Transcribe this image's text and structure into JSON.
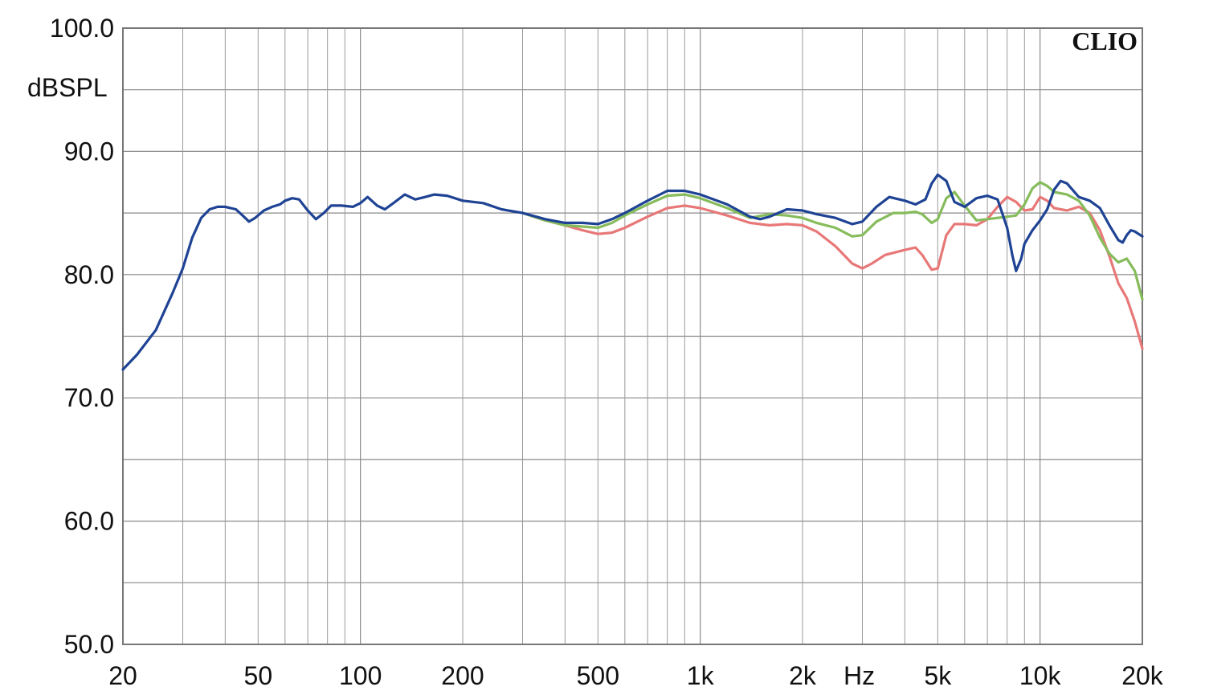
{
  "chart_data": {
    "type": "line",
    "brand": "CLIO",
    "ylabel": "dBSPL",
    "xlabel": "Hz",
    "x_scale": "log",
    "xlim": [
      20,
      20000
    ],
    "ylim": [
      50,
      100
    ],
    "grid": true,
    "y_ticks": [
      {
        "value": 100,
        "label": "100.0"
      },
      {
        "value": 90,
        "label": "90.0"
      },
      {
        "value": 80,
        "label": "80.0"
      },
      {
        "value": 70,
        "label": "70.0"
      },
      {
        "value": 60,
        "label": "60.0"
      },
      {
        "value": 50,
        "label": "50.0"
      }
    ],
    "x_ticks": [
      {
        "value": 20,
        "label": "20"
      },
      {
        "value": 50,
        "label": "50"
      },
      {
        "value": 100,
        "label": "100"
      },
      {
        "value": 200,
        "label": "200"
      },
      {
        "value": 500,
        "label": "500"
      },
      {
        "value": 1000,
        "label": "1k"
      },
      {
        "value": 2000,
        "label": "2k"
      },
      {
        "value": 5000,
        "label": "5k"
      },
      {
        "value": 10000,
        "label": "10k"
      },
      {
        "value": 20000,
        "label": "20k"
      }
    ],
    "series": [
      {
        "color": "#e87878",
        "points": [
          [
            300,
            85.0
          ],
          [
            350,
            84.4
          ],
          [
            400,
            84.0
          ],
          [
            450,
            83.6
          ],
          [
            500,
            83.3
          ],
          [
            550,
            83.4
          ],
          [
            600,
            83.8
          ],
          [
            700,
            84.7
          ],
          [
            800,
            85.4
          ],
          [
            900,
            85.6
          ],
          [
            1000,
            85.4
          ],
          [
            1200,
            84.8
          ],
          [
            1400,
            84.2
          ],
          [
            1600,
            84.0
          ],
          [
            1800,
            84.1
          ],
          [
            2000,
            84.0
          ],
          [
            2200,
            83.5
          ],
          [
            2500,
            82.3
          ],
          [
            2800,
            80.9
          ],
          [
            3000,
            80.5
          ],
          [
            3200,
            80.9
          ],
          [
            3500,
            81.6
          ],
          [
            4000,
            82.0
          ],
          [
            4300,
            82.2
          ],
          [
            4500,
            81.6
          ],
          [
            4800,
            80.4
          ],
          [
            5000,
            80.5
          ],
          [
            5300,
            83.2
          ],
          [
            5600,
            84.1
          ],
          [
            6000,
            84.1
          ],
          [
            6500,
            84.0
          ],
          [
            7000,
            84.5
          ],
          [
            7500,
            85.5
          ],
          [
            8000,
            86.3
          ],
          [
            8500,
            85.9
          ],
          [
            9000,
            85.2
          ],
          [
            9500,
            85.3
          ],
          [
            10000,
            86.3
          ],
          [
            10500,
            86.0
          ],
          [
            11000,
            85.4
          ],
          [
            12000,
            85.2
          ],
          [
            13000,
            85.5
          ],
          [
            14000,
            85.0
          ],
          [
            15000,
            83.6
          ],
          [
            16000,
            81.5
          ],
          [
            17000,
            79.3
          ],
          [
            18000,
            78.1
          ],
          [
            19000,
            76.2
          ],
          [
            20000,
            74.0
          ]
        ]
      },
      {
        "color": "#86bc5c",
        "points": [
          [
            300,
            85.0
          ],
          [
            350,
            84.4
          ],
          [
            400,
            84.0
          ],
          [
            450,
            83.9
          ],
          [
            500,
            83.8
          ],
          [
            550,
            84.2
          ],
          [
            600,
            84.8
          ],
          [
            700,
            85.7
          ],
          [
            800,
            86.4
          ],
          [
            900,
            86.5
          ],
          [
            1000,
            86.2
          ],
          [
            1200,
            85.4
          ],
          [
            1400,
            84.6
          ],
          [
            1600,
            84.9
          ],
          [
            1800,
            84.8
          ],
          [
            2000,
            84.6
          ],
          [
            2200,
            84.2
          ],
          [
            2500,
            83.8
          ],
          [
            2800,
            83.1
          ],
          [
            3000,
            83.2
          ],
          [
            3300,
            84.3
          ],
          [
            3700,
            85.0
          ],
          [
            4000,
            85.0
          ],
          [
            4300,
            85.1
          ],
          [
            4500,
            84.9
          ],
          [
            4800,
            84.2
          ],
          [
            5000,
            84.5
          ],
          [
            5300,
            86.2
          ],
          [
            5600,
            86.7
          ],
          [
            6000,
            85.6
          ],
          [
            6500,
            84.4
          ],
          [
            7000,
            84.5
          ],
          [
            7500,
            84.6
          ],
          [
            8000,
            84.7
          ],
          [
            8500,
            84.8
          ],
          [
            9000,
            85.7
          ],
          [
            9500,
            87.0
          ],
          [
            10000,
            87.5
          ],
          [
            10500,
            87.2
          ],
          [
            11000,
            86.7
          ],
          [
            12000,
            86.5
          ],
          [
            13000,
            86.0
          ],
          [
            14000,
            84.8
          ],
          [
            15000,
            83.0
          ],
          [
            16000,
            81.7
          ],
          [
            17000,
            81.0
          ],
          [
            18000,
            81.3
          ],
          [
            19000,
            80.3
          ],
          [
            20000,
            78.0
          ]
        ]
      },
      {
        "color": "#1f4394",
        "points": [
          [
            20,
            72.3
          ],
          [
            22,
            73.5
          ],
          [
            25,
            75.5
          ],
          [
            28,
            78.5
          ],
          [
            30,
            80.5
          ],
          [
            32,
            83.0
          ],
          [
            34,
            84.6
          ],
          [
            36,
            85.3
          ],
          [
            38,
            85.5
          ],
          [
            40,
            85.5
          ],
          [
            43,
            85.3
          ],
          [
            45,
            84.8
          ],
          [
            47,
            84.3
          ],
          [
            49,
            84.6
          ],
          [
            52,
            85.2
          ],
          [
            55,
            85.5
          ],
          [
            58,
            85.7
          ],
          [
            60,
            86.0
          ],
          [
            63,
            86.2
          ],
          [
            66,
            86.1
          ],
          [
            70,
            85.2
          ],
          [
            74,
            84.5
          ],
          [
            78,
            85.0
          ],
          [
            82,
            85.6
          ],
          [
            88,
            85.6
          ],
          [
            95,
            85.5
          ],
          [
            100,
            85.8
          ],
          [
            105,
            86.3
          ],
          [
            112,
            85.6
          ],
          [
            118,
            85.3
          ],
          [
            125,
            85.8
          ],
          [
            135,
            86.5
          ],
          [
            145,
            86.1
          ],
          [
            155,
            86.3
          ],
          [
            165,
            86.5
          ],
          [
            180,
            86.4
          ],
          [
            200,
            86.0
          ],
          [
            230,
            85.8
          ],
          [
            260,
            85.3
          ],
          [
            300,
            85.0
          ],
          [
            350,
            84.5
          ],
          [
            400,
            84.2
          ],
          [
            450,
            84.2
          ],
          [
            500,
            84.1
          ],
          [
            550,
            84.5
          ],
          [
            600,
            85.0
          ],
          [
            700,
            86.0
          ],
          [
            800,
            86.8
          ],
          [
            900,
            86.8
          ],
          [
            1000,
            86.5
          ],
          [
            1200,
            85.7
          ],
          [
            1400,
            84.7
          ],
          [
            1500,
            84.5
          ],
          [
            1600,
            84.7
          ],
          [
            1800,
            85.3
          ],
          [
            2000,
            85.2
          ],
          [
            2200,
            84.9
          ],
          [
            2500,
            84.6
          ],
          [
            2800,
            84.1
          ],
          [
            3000,
            84.3
          ],
          [
            3300,
            85.5
          ],
          [
            3600,
            86.3
          ],
          [
            4000,
            86.0
          ],
          [
            4300,
            85.7
          ],
          [
            4600,
            86.1
          ],
          [
            4800,
            87.4
          ],
          [
            5000,
            88.1
          ],
          [
            5300,
            87.6
          ],
          [
            5600,
            85.9
          ],
          [
            6000,
            85.5
          ],
          [
            6500,
            86.2
          ],
          [
            7000,
            86.4
          ],
          [
            7500,
            86.1
          ],
          [
            8000,
            83.8
          ],
          [
            8300,
            81.5
          ],
          [
            8500,
            80.3
          ],
          [
            8800,
            81.3
          ],
          [
            9000,
            82.5
          ],
          [
            9500,
            83.6
          ],
          [
            10000,
            84.4
          ],
          [
            10500,
            85.3
          ],
          [
            11000,
            86.9
          ],
          [
            11500,
            87.6
          ],
          [
            12000,
            87.4
          ],
          [
            13000,
            86.3
          ],
          [
            14000,
            86.0
          ],
          [
            15000,
            85.4
          ],
          [
            16000,
            84.0
          ],
          [
            17000,
            82.8
          ],
          [
            17500,
            82.6
          ],
          [
            18000,
            83.2
          ],
          [
            18500,
            83.6
          ],
          [
            19000,
            83.5
          ],
          [
            20000,
            83.1
          ]
        ]
      }
    ]
  }
}
